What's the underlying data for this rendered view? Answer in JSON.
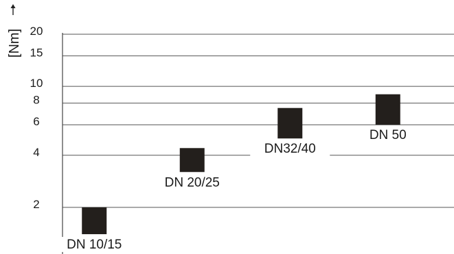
{
  "chart_data": {
    "type": "bar",
    "ylabel": "[Nm]",
    "y_scale": "log",
    "ylim": [
      1,
      20
    ],
    "yticks": [
      2,
      4,
      6,
      8,
      10,
      15,
      20
    ],
    "categories": [
      "DN 10/15",
      "DN 20/25",
      "DN32/40",
      "DN 50"
    ],
    "ranges": [
      {
        "category": "DN 10/15",
        "low": 1.4,
        "high": 2
      },
      {
        "category": "DN 20/25",
        "low": 3.2,
        "high": 4.4
      },
      {
        "category": "DN32/40",
        "low": 5,
        "high": 7.5
      },
      {
        "category": "DN 50",
        "low": 6,
        "high": 9
      }
    ],
    "grid": true,
    "colors": {
      "bar": "#231f1c",
      "grid": "#555555",
      "text": "#1a1a1a"
    }
  }
}
